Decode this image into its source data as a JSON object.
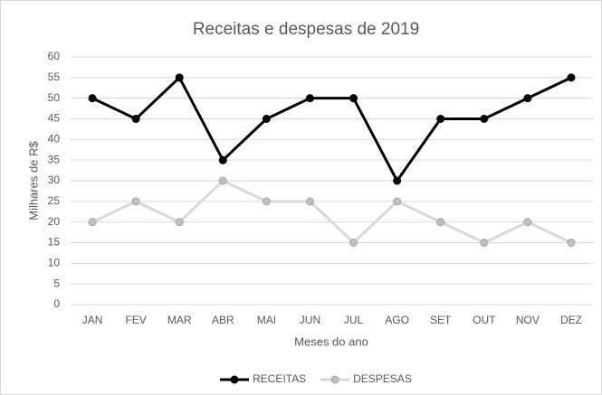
{
  "chart_data": {
    "type": "line",
    "title": "Receitas e despesas de 2019",
    "x_label": "Meses do ano",
    "y_label": "Milhares de R$",
    "categories": [
      "JAN",
      "FEV",
      "MAR",
      "ABR",
      "MAI",
      "JUN",
      "JUL",
      "AGO",
      "SET",
      "OUT",
      "NOV",
      "DEZ"
    ],
    "series": [
      {
        "name": "RECEITAS",
        "color": "#000000",
        "values": [
          50,
          45,
          55,
          35,
          45,
          50,
          50,
          30,
          45,
          45,
          50,
          55
        ]
      },
      {
        "name": "DESPESAS",
        "color": "#d9d9d9",
        "values": [
          20,
          25,
          20,
          30,
          25,
          25,
          15,
          25,
          20,
          15,
          20,
          15
        ]
      }
    ],
    "ylim": [
      0,
      60
    ],
    "yticks": [
      0,
      5,
      10,
      15,
      20,
      25,
      30,
      35,
      40,
      45,
      50,
      55,
      60
    ],
    "grid": true,
    "legend": "bottom"
  }
}
